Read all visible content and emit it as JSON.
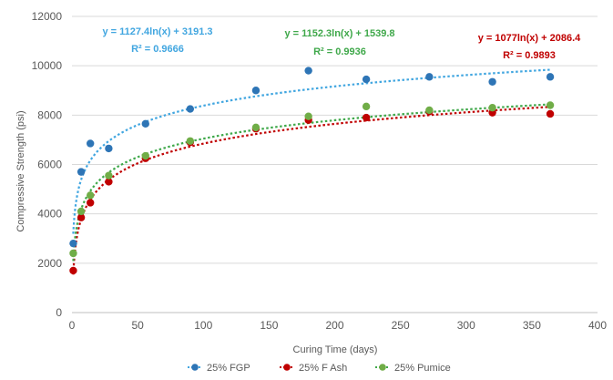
{
  "chart_data": {
    "type": "scatter",
    "title": "",
    "xlabel": "Curing Time (days)",
    "ylabel": "Compressive Strength (psi)",
    "xlim": [
      0,
      400
    ],
    "ylim": [
      0,
      12000
    ],
    "x_ticks": [
      "0",
      "50",
      "100",
      "150",
      "200",
      "250",
      "300",
      "350",
      "400"
    ],
    "y_ticks": [
      "0",
      "2000",
      "4000",
      "6000",
      "8000",
      "10000",
      "12000"
    ],
    "grid": "horizontal",
    "legend_position": "bottom",
    "trendline": "logarithmic",
    "series": [
      {
        "name": "25% FGP",
        "color": "#2e75b6",
        "trend_color": "#41a6e0",
        "x": [
          1,
          7,
          14,
          28,
          56,
          90,
          140,
          180,
          224,
          272,
          320,
          364
        ],
        "y": [
          2800,
          5700,
          6850,
          6650,
          7650,
          8250,
          9000,
          9800,
          9450,
          9550,
          9350,
          9550
        ],
        "equation": "y = 1127.4ln(x) + 3191.3",
        "r2": "R² = 0.9666",
        "trend": {
          "a": 1127.4,
          "b": 3191.3
        }
      },
      {
        "name": "25% F Ash",
        "color": "#c00000",
        "trend_color": "#c00000",
        "x": [
          1,
          7,
          14,
          28,
          56,
          90,
          140,
          180,
          224,
          272,
          320,
          364
        ],
        "y": [
          1700,
          3850,
          4450,
          5300,
          6250,
          6900,
          7450,
          7800,
          7900,
          8150,
          8100,
          8050
        ],
        "equation": "y = 1152.3ln(x) + 1539.8",
        "r2": "R² = 0.9936",
        "trend": {
          "a": 1152.3,
          "b": 1539.8
        }
      },
      {
        "name": "25% Pumice",
        "color": "#70ad47",
        "trend_color": "#3fa84a",
        "x": [
          1,
          7,
          14,
          28,
          56,
          90,
          140,
          180,
          224,
          272,
          320,
          364
        ],
        "y": [
          2400,
          4100,
          4750,
          5550,
          6350,
          6950,
          7500,
          7950,
          8350,
          8200,
          8300,
          8400
        ],
        "equation": "y = 1077ln(x) + 2086.4",
        "r2": "R² = 0.9893",
        "trend": {
          "a": 1077,
          "b": 2086.4
        }
      }
    ]
  }
}
